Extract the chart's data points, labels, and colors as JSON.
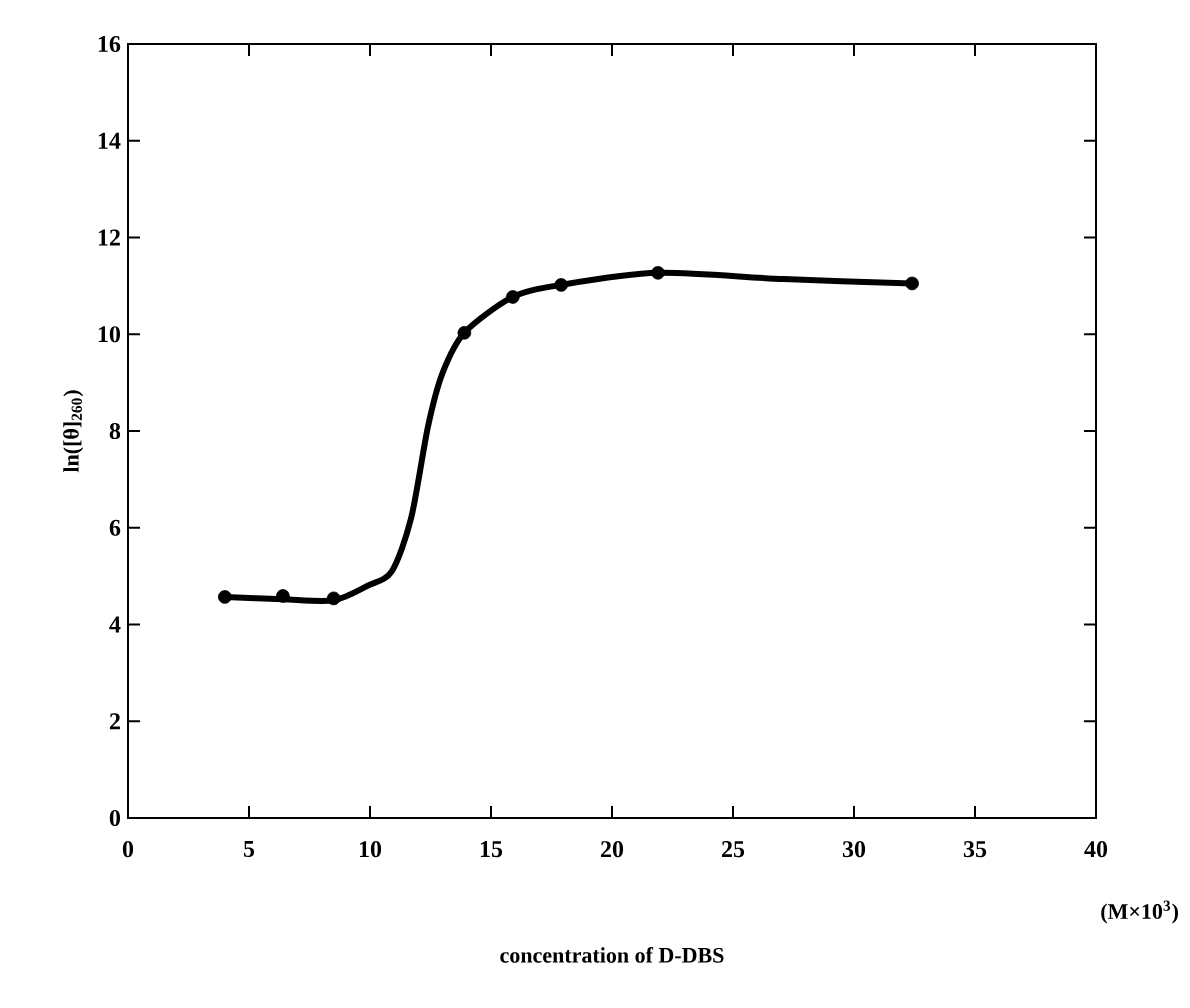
{
  "chart_data": {
    "type": "line",
    "xlabel": "concentration of D-DBS",
    "ylabel": "ln([θ]$_{260}$)",
    "annotations": [
      "(M×10$^{3}$)"
    ],
    "xlim": [
      0,
      40
    ],
    "ylim": [
      0,
      16
    ],
    "xticks": [
      0,
      5,
      10,
      15,
      20,
      25,
      30,
      35,
      40
    ],
    "yticks": [
      0,
      2,
      4,
      6,
      8,
      10,
      12,
      14,
      16
    ],
    "grid": false,
    "series": [
      {
        "type": "scatter",
        "marker": "circle",
        "color": "#000000",
        "x": [
          4,
          6.4,
          8.5,
          13.9,
          15.9,
          17.9,
          21.9,
          32.4
        ],
        "values": [
          4.57,
          4.59,
          4.54,
          10.03,
          10.77,
          11.02,
          11.27,
          11.05
        ]
      },
      {
        "marker": "none",
        "color": "#000000",
        "x": [
          4,
          6.4,
          8.5,
          9.9,
          10.9,
          11.7,
          12.4,
          13.0,
          13.9,
          15.9,
          17.9,
          21.9,
          27.1,
          32.4
        ],
        "values": [
          4.57,
          4.52,
          4.5,
          4.8,
          5.1,
          6.2,
          8.1,
          9.2,
          10.03,
          10.77,
          11.02,
          11.27,
          11.14,
          11.05
        ]
      }
    ]
  }
}
